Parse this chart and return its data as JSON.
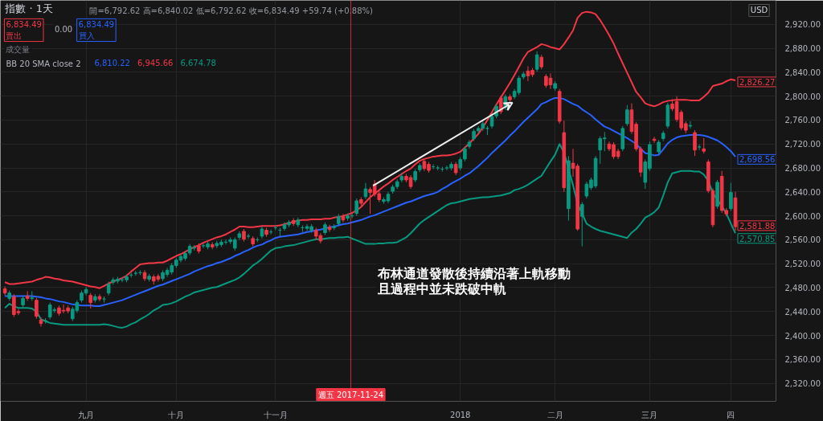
{
  "chart_data": {
    "type": "candlestick",
    "title": "指數 · 1天",
    "categories": [
      null,
      null,
      null,
      null,
      null,
      null,
      null,
      null,
      null,
      null,
      null,
      null,
      null,
      null,
      null,
      null,
      null,
      null,
      "九月",
      null,
      null,
      null,
      null,
      null,
      null,
      null,
      null,
      null,
      null,
      null,
      null,
      null,
      null,
      null,
      null,
      null,
      null,
      null,
      "十月",
      null,
      null,
      null,
      null,
      null,
      null,
      null,
      null,
      null,
      null,
      null,
      null,
      null,
      null,
      null,
      null,
      null,
      null,
      null,
      null,
      null,
      "十一月",
      null,
      null,
      null,
      null,
      null,
      null,
      null,
      null,
      null,
      null,
      null,
      null,
      null,
      null,
      null,
      null,
      null,
      null,
      null,
      null,
      null,
      null,
      null,
      null,
      null,
      null,
      null,
      null,
      null,
      null,
      null,
      null,
      null,
      null,
      null,
      null,
      null,
      null,
      null,
      null,
      "2018",
      null,
      null,
      null,
      null,
      null,
      null,
      null,
      null,
      null,
      null,
      null,
      null,
      null,
      null,
      null,
      null,
      null,
      null,
      null,
      null,
      "二月",
      null,
      null,
      null,
      null,
      null,
      null,
      null,
      null,
      null,
      null,
      null,
      null,
      null,
      null,
      null,
      null,
      null,
      null,
      null,
      null,
      "三月",
      null,
      null,
      null,
      null,
      null,
      null,
      null,
      null,
      null,
      null,
      null,
      null,
      null,
      null,
      null,
      null,
      null,
      "四",
      null
    ],
    "ylim": [
      2290,
      2960
    ],
    "yticks": [
      {
        "value": 2320,
        "label": "2,320.00"
      },
      {
        "value": 2360,
        "label": "2,360.00"
      },
      {
        "value": 2400,
        "label": "2,400.00"
      },
      {
        "value": 2440,
        "label": "2,440.00"
      },
      {
        "value": 2480,
        "label": "2,480.00"
      },
      {
        "value": 2520,
        "label": "2,520.00"
      },
      {
        "value": 2560,
        "label": "2,560.00"
      },
      {
        "value": 2600,
        "label": "2,600.00"
      },
      {
        "value": 2640,
        "label": "2,640.00"
      },
      {
        "value": 2680,
        "label": "2,680.00"
      },
      {
        "value": 2720,
        "label": "2,720.00"
      },
      {
        "value": 2760,
        "label": "2,760.00"
      },
      {
        "value": 2800,
        "label": "2,800.00"
      },
      {
        "value": 2840,
        "label": "2,840.00"
      },
      {
        "value": 2880,
        "label": "2,880.00"
      },
      {
        "value": 2920,
        "label": "2,920.00"
      }
    ],
    "grid": true,
    "series": [
      {
        "type": "line",
        "color": "#f23645",
        "values": [
          2489,
          2486,
          2486,
          2487,
          2488,
          2489,
          2490,
          2493,
          2495,
          2498,
          2497,
          2495,
          2494,
          2492,
          2491,
          2490,
          2488,
          2486,
          2484,
          2482,
          2481,
          2479,
          2483,
          2487,
          2490,
          2493,
          2496,
          2500,
          2507,
          2513,
          2519,
          2520,
          2521,
          2521,
          2522,
          2522,
          2525,
          2529,
          2533,
          2536,
          2540,
          2544,
          2548,
          2551,
          2555,
          2558,
          2561,
          2564,
          2566,
          2569,
          2573,
          2577,
          2582,
          2582,
          2581,
          2581,
          2582,
          2583,
          2583,
          2583,
          2583,
          2584,
          2586,
          2588,
          2590,
          2592,
          2593,
          2593,
          2594,
          2594,
          2594,
          2595,
          2595,
          2597,
          2598,
          2600,
          2602,
          2605,
          2609,
          2615,
          2623,
          2631,
          2637,
          2643,
          2649,
          2654,
          2660,
          2665,
          2670,
          2675,
          2679,
          2686,
          2692,
          2695,
          2697,
          2699,
          2700,
          2701,
          2701,
          2702,
          2704,
          2707,
          2714,
          2721,
          2729,
          2737,
          2748,
          2760,
          2773,
          2786,
          2798,
          2810,
          2822,
          2835,
          2849,
          2863,
          2874,
          2878,
          2882,
          2887,
          2885,
          2882,
          2880,
          2878,
          2887,
          2898,
          2910,
          2931,
          2939,
          2941,
          2940,
          2937,
          2927,
          2915,
          2902,
          2888,
          2871,
          2855,
          2839,
          2823,
          2807,
          2798,
          2788,
          2785,
          2783,
          2786,
          2790,
          2792,
          2793,
          2794,
          2794,
          2794,
          2793,
          2793,
          2793,
          2799,
          2806,
          2817,
          2819,
          2821,
          2825,
          2828,
          2826.27
        ]
      },
      {
        "type": "line",
        "color": "#2962ff",
        "values": [
          2466,
          2466,
          2466,
          2466,
          2466,
          2466,
          2466,
          2465,
          2464,
          2462,
          2461,
          2459,
          2457,
          2456,
          2454,
          2452,
          2451,
          2450,
          2450,
          2450,
          2449,
          2449,
          2451,
          2453,
          2455,
          2457,
          2459,
          2462,
          2465,
          2468,
          2471,
          2474,
          2477,
          2480,
          2483,
          2485,
          2488,
          2491,
          2494,
          2497,
          2500,
          2503,
          2507,
          2510,
          2513,
          2516,
          2518,
          2521,
          2523,
          2526,
          2529,
          2533,
          2536,
          2540,
          2543,
          2547,
          2550,
          2552,
          2556,
          2559,
          2563,
          2565,
          2566,
          2567,
          2568,
          2569,
          2571,
          2573,
          2574,
          2576,
          2577,
          2579,
          2581,
          2582,
          2584,
          2586,
          2587,
          2589,
          2591,
          2593,
          2596,
          2599,
          2601,
          2604,
          2607,
          2610,
          2613,
          2616,
          2619,
          2622,
          2624,
          2627,
          2630,
          2633,
          2635,
          2637,
          2640,
          2645,
          2649,
          2654,
          2658,
          2662,
          2667,
          2671,
          2677,
          2683,
          2690,
          2697,
          2705,
          2712,
          2719,
          2726,
          2734,
          2741,
          2749,
          2757,
          2764,
          2771,
          2778,
          2787,
          2790,
          2794,
          2797,
          2797,
          2795,
          2791,
          2787,
          2784,
          2778,
          2773,
          2768,
          2761,
          2755,
          2749,
          2746,
          2742,
          2738,
          2734,
          2730,
          2725,
          2720,
          2712,
          2705,
          2703,
          2701,
          2702,
          2711,
          2721,
          2727,
          2731,
          2733,
          2734,
          2735,
          2735,
          2735,
          2734,
          2732,
          2729,
          2726,
          2721,
          2715,
          2708,
          2698.56
        ]
      },
      {
        "type": "line",
        "color": "#089981",
        "values": [
          2446,
          2453,
          2449,
          2446,
          2446,
          2446,
          2445,
          2440,
          2427,
          2424,
          2421,
          2420,
          2419,
          2418,
          2418,
          2418,
          2418,
          2418,
          2418,
          2418,
          2418,
          2418,
          2419,
          2418,
          2416,
          2414,
          2413,
          2415,
          2419,
          2422,
          2427,
          2431,
          2436,
          2442,
          2446,
          2451,
          2452,
          2454,
          2457,
          2461,
          2465,
          2468,
          2472,
          2474,
          2476,
          2478,
          2480,
          2481,
          2484,
          2487,
          2490,
          2493,
          2497,
          2503,
          2510,
          2517,
          2522,
          2528,
          2535,
          2542,
          2546,
          2547,
          2549,
          2550,
          2551,
          2553,
          2555,
          2557,
          2559,
          2561,
          2561,
          2562,
          2563,
          2563,
          2564,
          2564,
          2565,
          2562,
          2559,
          2556,
          2553,
          2553,
          2553,
          2554,
          2554,
          2555,
          2555,
          2556,
          2560,
          2564,
          2571,
          2579,
          2587,
          2593,
          2598,
          2603,
          2608,
          2613,
          2618,
          2621,
          2622,
          2624,
          2626,
          2628,
          2629,
          2630,
          2631,
          2631,
          2632,
          2633,
          2634,
          2636,
          2638,
          2643,
          2645,
          2648,
          2652,
          2657,
          2662,
          2667,
          2679,
          2691,
          2702,
          2720,
          2706,
          2678,
          2651,
          2620,
          2604,
          2587,
          2582,
          2578,
          2575,
          2573,
          2571,
          2569,
          2567,
          2565,
          2563,
          2572,
          2578,
          2587,
          2597,
          2601,
          2606,
          2614,
          2634,
          2656,
          2671,
          2673,
          2675,
          2675,
          2675,
          2674,
          2674,
          2669,
          2658,
          2638,
          2627,
          2616,
          2604,
          2587,
          2570.85
        ]
      },
      {
        "colors": [
          "#f23645",
          "#089981",
          "#f23645",
          "#f23645",
          "#089981",
          "#f23645",
          "#089981",
          "#f23645",
          "#f23645",
          "#089981",
          "#089981",
          "#089981",
          "#f23645",
          "#f23645",
          "#f23645",
          "#089981",
          "#089981",
          "#089981",
          "#089981",
          "#f23645",
          "#089981",
          "#f23645",
          "#089981",
          "#089981",
          "#089981",
          "#089981",
          "#089981",
          "#089981",
          "#089981",
          "#089981",
          "#089981",
          "#f23645",
          "#089981",
          "#f23645",
          "#f23645",
          "#089981",
          "#089981",
          "#089981",
          "#089981",
          "#089981",
          "#089981",
          "#089981",
          "#089981",
          "#f23645",
          "#089981",
          "#089981",
          "#f23645",
          "#089981",
          "#089981",
          "#089981",
          "#089981",
          "#089981",
          "#089981",
          "#f23645",
          "#089981",
          "#f23645",
          "#089981",
          "#089981",
          "#f23645",
          "#089981",
          "#089981",
          "#089981",
          "#089981",
          "#089981",
          "#f23645",
          "#089981",
          "#089981",
          "#089981",
          "#089981",
          "#f23645",
          "#f23645",
          "#089981",
          "#f23645",
          "#089981",
          "#089981",
          "#f23645",
          "#089981",
          "#089981",
          "#089981",
          "#f23645",
          "#089981",
          "#f23645",
          "#f23645",
          "#f23645",
          "#089981",
          "#089981",
          "#089981",
          "#089981",
          "#089981",
          "#f23645",
          "#f23645",
          "#089981",
          "#089981",
          "#f23645",
          "#f23645",
          "#089981",
          "#089981",
          "#089981",
          "#089981",
          "#089981",
          "#f23645",
          "#089981",
          "#089981",
          "#089981",
          "#089981",
          "#089981",
          "#089981",
          "#089981",
          "#089981",
          "#089981",
          "#f23645",
          "#089981",
          "#f23645",
          "#089981",
          "#089981",
          "#089981",
          "#f23645",
          "#f23645",
          "#089981",
          "#f23645",
          "#f23645",
          "#f23645",
          "#089981",
          "#f23645",
          "#f23645",
          "#089981",
          "#f23645",
          "#f23645",
          "#089981",
          "#089981",
          "#089981",
          "#089981",
          "#089981",
          "#089981",
          "#f23645",
          "#f23645",
          "#f23645",
          "#089981",
          "#089981",
          "#f23645",
          "#f23645",
          "#f23645",
          "#089981",
          "#089981",
          "#f23645",
          "#089981",
          "#089981",
          "#089981",
          "#f23645",
          "#f23645",
          "#f23645",
          "#f23645",
          "#089981",
          "#f23645",
          "#089981",
          "#f23645",
          "#f23645",
          "#f23645",
          "#089981",
          "#f23645",
          "#f23645",
          "#089981",
          "#f23645"
        ],
        "ohlc": [
          [
            2478,
            2482,
            2467,
            2471
          ],
          [
            2462,
            2475,
            2458,
            2471
          ],
          [
            2465,
            2469,
            2431,
            2435
          ],
          [
            2440,
            2444,
            2434,
            2438
          ],
          [
            2451,
            2466,
            2447,
            2462
          ],
          [
            2466,
            2474,
            2458,
            2462
          ],
          [
            2462,
            2474,
            2458,
            2463
          ],
          [
            2459,
            2463,
            2428,
            2432
          ],
          [
            2426,
            2430,
            2415,
            2420
          ],
          [
            2424,
            2429,
            2420,
            2425
          ],
          [
            2431,
            2455,
            2427,
            2451
          ],
          [
            2442,
            2447,
            2438,
            2443
          ],
          [
            2446,
            2450,
            2433,
            2437
          ],
          [
            2442,
            2452,
            2437,
            2441
          ],
          [
            2446,
            2450,
            2437,
            2441
          ],
          [
            2428,
            2448,
            2424,
            2444
          ],
          [
            2442,
            2459,
            2438,
            2455
          ],
          [
            2459,
            2475,
            2455,
            2471
          ],
          [
            2471,
            2481,
            2467,
            2477
          ],
          [
            2467,
            2471,
            2445,
            2455
          ],
          [
            2459,
            2469,
            2455,
            2465
          ],
          [
            2465,
            2469,
            2457,
            2461
          ],
          [
            2461,
            2465,
            2455,
            2461
          ],
          [
            2471,
            2490,
            2467,
            2486
          ],
          [
            2489,
            2497,
            2485,
            2493
          ],
          [
            2491,
            2498,
            2487,
            2494
          ],
          [
            2493,
            2497,
            2489,
            2493
          ],
          [
            2493,
            2502,
            2489,
            2498
          ],
          [
            2501,
            2505,
            2497,
            2501
          ],
          [
            2504,
            2508,
            2500,
            2504
          ],
          [
            2505,
            2509,
            2501,
            2505
          ],
          [
            2505,
            2509,
            2491,
            2495
          ],
          [
            2494,
            2503,
            2490,
            2499
          ],
          [
            2498,
            2502,
            2485,
            2491
          ],
          [
            2499,
            2503,
            2490,
            2494
          ],
          [
            2495,
            2509,
            2491,
            2505
          ],
          [
            2502,
            2513,
            2498,
            2509
          ],
          [
            2506,
            2521,
            2502,
            2517
          ],
          [
            2517,
            2530,
            2513,
            2526
          ],
          [
            2526,
            2536,
            2522,
            2532
          ],
          [
            2529,
            2541,
            2525,
            2537
          ],
          [
            2538,
            2553,
            2534,
            2549
          ],
          [
            2546,
            2551,
            2542,
            2547
          ],
          [
            2550,
            2554,
            2537,
            2541
          ],
          [
            2550,
            2554,
            2546,
            2550
          ],
          [
            2548,
            2557,
            2544,
            2553
          ],
          [
            2552,
            2556,
            2544,
            2548
          ],
          [
            2550,
            2558,
            2546,
            2554
          ],
          [
            2552,
            2560,
            2548,
            2556
          ],
          [
            2556,
            2560,
            2552,
            2556
          ],
          [
            2557,
            2564,
            2553,
            2560
          ],
          [
            2546,
            2564,
            2542,
            2560
          ],
          [
            2564,
            2574,
            2560,
            2570
          ],
          [
            2574,
            2578,
            2557,
            2561
          ],
          [
            2566,
            2570,
            2562,
            2566
          ],
          [
            2562,
            2566,
            2549,
            2553
          ],
          [
            2560,
            2564,
            2556,
            2560
          ],
          [
            2566,
            2582,
            2562,
            2578
          ],
          [
            2576,
            2580,
            2565,
            2569
          ],
          [
            2573,
            2577,
            2569,
            2573
          ],
          [
            2580,
            2584,
            2576,
            2580
          ],
          [
            2576,
            2580,
            2566,
            2576
          ],
          [
            2579,
            2589,
            2575,
            2585
          ],
          [
            2585,
            2593,
            2581,
            2589
          ],
          [
            2592,
            2596,
            2583,
            2587
          ],
          [
            2585,
            2597,
            2581,
            2593
          ],
          [
            2580,
            2584,
            2573,
            2580
          ],
          [
            2579,
            2586,
            2575,
            2582
          ],
          [
            2576,
            2586,
            2572,
            2582
          ],
          [
            2576,
            2580,
            2560,
            2566
          ],
          [
            2567,
            2571,
            2554,
            2558
          ],
          [
            2572,
            2589,
            2568,
            2585
          ],
          [
            2581,
            2585,
            2573,
            2577
          ],
          [
            2580,
            2586,
            2576,
            2582
          ],
          [
            2587,
            2603,
            2583,
            2599
          ],
          [
            2599,
            2603,
            2589,
            2593
          ],
          [
            2596,
            2604,
            2592,
            2600
          ],
          [
            2600,
            2604,
            2596,
            2600
          ],
          [
            2604,
            2629,
            2600,
            2625
          ],
          [
            2627,
            2631,
            2617,
            2621
          ],
          [
            2632,
            2655,
            2628,
            2645
          ],
          [
            2644,
            2648,
            2603,
            2639
          ],
          [
            2653,
            2660,
            2632,
            2636
          ],
          [
            2637,
            2641,
            2623,
            2627
          ],
          [
            2624,
            2631,
            2620,
            2627
          ],
          [
            2625,
            2640,
            2621,
            2636
          ],
          [
            2641,
            2652,
            2637,
            2648
          ],
          [
            2649,
            2661,
            2645,
            2657
          ],
          [
            2660,
            2672,
            2656,
            2666
          ],
          [
            2666,
            2670,
            2656,
            2660
          ],
          [
            2664,
            2668,
            2645,
            2649
          ],
          [
            2660,
            2678,
            2656,
            2674
          ],
          [
            2677,
            2688,
            2673,
            2684
          ],
          [
            2691,
            2695,
            2675,
            2679
          ],
          [
            2686,
            2690,
            2672,
            2676
          ],
          [
            2682,
            2686,
            2678,
            2682
          ],
          [
            2680,
            2684,
            2676,
            2680
          ],
          [
            2678,
            2682,
            2674,
            2678
          ],
          [
            2680,
            2684,
            2676,
            2680
          ],
          [
            2680,
            2690,
            2676,
            2686
          ],
          [
            2686,
            2690,
            2668,
            2672
          ],
          [
            2680,
            2698,
            2676,
            2694
          ],
          [
            2695,
            2716,
            2691,
            2712
          ],
          [
            2716,
            2727,
            2712,
            2723
          ],
          [
            2729,
            2745,
            2725,
            2741
          ],
          [
            2742,
            2750,
            2738,
            2746
          ],
          [
            2746,
            2758,
            2742,
            2754
          ],
          [
            2746,
            2750,
            2735,
            2746
          ],
          [
            2750,
            2770,
            2746,
            2766
          ],
          [
            2767,
            2787,
            2763,
            2783
          ],
          [
            2797,
            2801,
            2770,
            2774
          ],
          [
            2781,
            2803,
            2777,
            2799
          ],
          [
            2799,
            2803,
            2790,
            2794
          ],
          [
            2799,
            2812,
            2795,
            2808
          ],
          [
            2806,
            2834,
            2802,
            2830
          ],
          [
            2832,
            2841,
            2828,
            2837
          ],
          [
            2842,
            2850,
            2825,
            2834
          ],
          [
            2843,
            2847,
            2832,
            2836
          ],
          [
            2845,
            2875,
            2841,
            2869
          ],
          [
            2865,
            2869,
            2845,
            2849
          ],
          [
            2833,
            2837,
            2814,
            2818
          ],
          [
            2830,
            2838,
            2812,
            2819
          ],
          [
            2813,
            2825,
            2809,
            2821
          ],
          [
            2808,
            2812,
            2754,
            2758
          ],
          [
            2739,
            2759,
            2640,
            2647
          ],
          [
            2612,
            2700,
            2592,
            2692
          ],
          [
            2688,
            2712,
            2665,
            2679
          ],
          [
            2683,
            2687,
            2575,
            2578
          ],
          [
            2599,
            2623,
            2549,
            2619
          ],
          [
            2633,
            2657,
            2629,
            2653
          ],
          [
            2647,
            2664,
            2643,
            2660
          ],
          [
            2650,
            2700,
            2646,
            2696
          ],
          [
            2710,
            2733,
            2687,
            2729
          ],
          [
            2729,
            2740,
            2708,
            2730
          ],
          [
            2720,
            2724,
            2708,
            2712
          ],
          [
            2719,
            2723,
            2695,
            2699
          ],
          [
            2708,
            2712,
            2695,
            2699
          ],
          [
            2712,
            2750,
            2708,
            2746
          ],
          [
            2754,
            2785,
            2750,
            2777
          ],
          [
            2777,
            2788,
            2737,
            2741
          ],
          [
            2753,
            2757,
            2708,
            2712
          ],
          [
            2712,
            2716,
            2665,
            2673
          ],
          [
            2656,
            2694,
            2645,
            2690
          ],
          [
            2679,
            2724,
            2675,
            2719
          ],
          [
            2728,
            2732,
            2722,
            2726
          ],
          [
            2707,
            2727,
            2703,
            2723
          ],
          [
            2729,
            2742,
            2725,
            2738
          ],
          [
            2750,
            2789,
            2746,
            2785
          ],
          [
            2787,
            2795,
            2775,
            2779
          ],
          [
            2791,
            2800,
            2757,
            2761
          ],
          [
            2773,
            2777,
            2743,
            2747
          ],
          [
            2754,
            2758,
            2738,
            2743
          ],
          [
            2750,
            2758,
            2746,
            2751
          ],
          [
            2739,
            2743,
            2700,
            2710
          ],
          [
            2715,
            2719,
            2710,
            2715
          ],
          [
            2712,
            2730,
            2704,
            2708
          ],
          [
            2690,
            2694,
            2638,
            2642
          ],
          [
            2642,
            2646,
            2581,
            2585
          ],
          [
            2616,
            2660,
            2612,
            2656
          ],
          [
            2666,
            2675,
            2605,
            2609
          ],
          [
            2609,
            2613,
            2599,
            2603
          ],
          [
            2612,
            2655,
            2608,
            2639
          ],
          [
            2630,
            2640,
            2575,
            2581.88
          ]
        ]
      }
    ],
    "annotations": [
      "開=6,792.62 高=6,840.02 低=6,792.62 收=6,834.49 +59.74 (+0.88%)",
      "6,834.49\n賣出",
      "0.00",
      "6,834.49\n買入",
      "成交量",
      "BB 20 SMA close 2",
      "6,810.22",
      "6,945.66",
      "6,674.78",
      "USD",
      "布林通道發散後持續沿著上軌移動",
      "且過程中並未跌破中軌",
      "週五 2017-11-24",
      "2,826.27",
      "2,698.56",
      "2,581.88",
      "2,570.85"
    ]
  }
}
